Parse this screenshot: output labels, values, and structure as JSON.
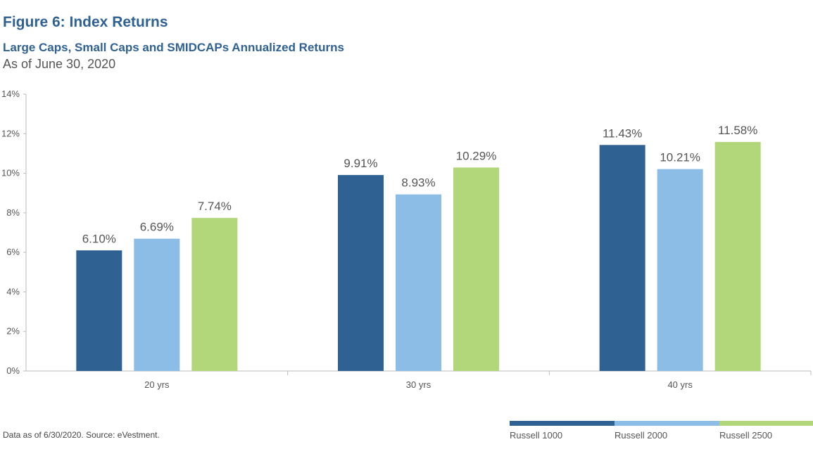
{
  "title": "Figure 6: Index Returns",
  "subtitle": "Large Caps, Small Caps and SMIDCAPs Annualized Returns",
  "as_of": "As of June 30, 2020",
  "source_note": "Data as of 6/30/2020. Source: eVestment.",
  "colors": {
    "russell_1000": "#2f6193",
    "russell_2000": "#8cbde6",
    "russell_2500": "#b2d67a"
  },
  "legend": [
    {
      "label": "Russell 1000",
      "color": "#2f6193"
    },
    {
      "label": "Russell 2000",
      "color": "#8cbde6"
    },
    {
      "label": "Russell 2500",
      "color": "#b2d67a"
    }
  ],
  "chart_data": {
    "type": "bar",
    "categories": [
      "20 yrs",
      "30 yrs",
      "40 yrs"
    ],
    "series": [
      {
        "name": "Russell 1000",
        "values": [
          6.1,
          9.91,
          11.43
        ],
        "labels": [
          "6.10%",
          "9.91%",
          "11.43%"
        ],
        "color": "#2f6193"
      },
      {
        "name": "Russell 2000",
        "values": [
          6.69,
          8.93,
          10.21
        ],
        "labels": [
          "6.69%",
          "8.93%",
          "10.21%"
        ],
        "color": "#8cbde6"
      },
      {
        "name": "Russell 2500",
        "values": [
          7.74,
          10.29,
          11.58
        ],
        "labels": [
          "7.74%",
          "10.29%",
          "11.58%"
        ],
        "color": "#b2d67a"
      }
    ],
    "ylim": [
      0,
      14
    ],
    "yticks": [
      0,
      2,
      4,
      6,
      8,
      10,
      12,
      14
    ],
    "ytick_labels": [
      "0%",
      "2%",
      "4%",
      "6%",
      "8%",
      "10%",
      "12%",
      "14%"
    ],
    "legend_position": "bottom-right",
    "grid": false
  }
}
